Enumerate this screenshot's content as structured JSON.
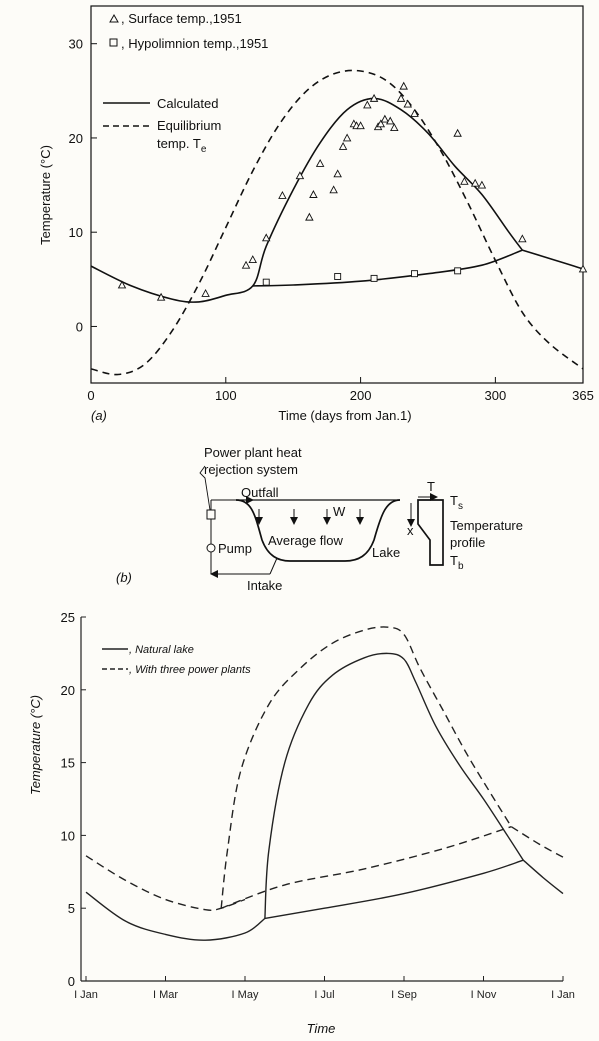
{
  "chart_data": [
    {
      "type": "line",
      "panel_label": "(a)",
      "xlabel": "Time (days from Jan.1)",
      "ylabel": "Temperature (°C)",
      "xlim": [
        0,
        365
      ],
      "ylim": [
        -6,
        34
      ],
      "x_ticks": [
        "0",
        "100",
        "200",
        "300",
        "365"
      ],
      "y_ticks": [
        "0",
        "10",
        "20",
        "30"
      ],
      "legend_markers": [
        {
          "marker": "triangle",
          "label": ", Surface temp.,1951"
        },
        {
          "marker": "square",
          "label": ", Hypolimnion temp.,1951"
        }
      ],
      "legend_lines": [
        {
          "style": "solid",
          "label": "Calculated"
        },
        {
          "style": "dashed",
          "label": "Equilibrium",
          "label2": "temp. T",
          "label2_sub": "e"
        }
      ],
      "series": [
        {
          "name": "Calculated",
          "style": "solid",
          "x": [
            0,
            30,
            60,
            80,
            100,
            120,
            130,
            150,
            170,
            190,
            210,
            230,
            250,
            270,
            290,
            310,
            320
          ],
          "y": [
            6.4,
            4.3,
            2.9,
            2.6,
            3.3,
            4.3,
            8.5,
            14.5,
            19.5,
            23.0,
            24.2,
            23.0,
            20.5,
            17.0,
            14.0,
            10.0,
            8.1
          ]
        },
        {
          "name": "Calculated (hypolimnion)",
          "style": "solid",
          "x": [
            120,
            150,
            200,
            250,
            290,
            320
          ],
          "y": [
            4.3,
            4.4,
            4.8,
            5.6,
            6.5,
            8.1
          ]
        },
        {
          "name": "Calculated (late)",
          "style": "solid",
          "x": [
            320,
            345,
            365
          ],
          "y": [
            8.1,
            7.0,
            6.1
          ]
        },
        {
          "name": "Equilibrium temp. Te",
          "style": "dashed",
          "x": [
            0,
            20,
            40,
            60,
            80,
            100,
            120,
            140,
            160,
            180,
            200,
            220,
            240,
            260,
            280,
            300,
            320,
            340,
            365
          ],
          "y": [
            -4.5,
            -5.1,
            -4.0,
            -0.5,
            4.5,
            10.5,
            16.5,
            21.5,
            25.0,
            26.8,
            27.1,
            26.0,
            23.0,
            18.5,
            13.0,
            7.0,
            1.5,
            -1.8,
            -4.5
          ]
        }
      ],
      "surface_points": {
        "x": [
          23,
          52,
          85,
          115,
          120,
          130,
          142,
          155,
          162,
          165,
          170,
          180,
          183,
          187,
          190,
          195,
          197,
          200,
          205,
          210,
          213,
          215,
          218,
          222,
          225,
          230,
          232,
          235,
          240,
          272,
          277,
          285,
          290,
          320,
          365
        ],
        "y": [
          4.4,
          3.1,
          3.5,
          6.5,
          7.1,
          9.4,
          13.9,
          16.0,
          11.6,
          14.0,
          17.3,
          14.5,
          16.2,
          19.1,
          20.0,
          21.5,
          21.3,
          21.3,
          23.5,
          24.2,
          21.2,
          21.5,
          22.0,
          21.8,
          21.1,
          24.2,
          25.5,
          23.6,
          22.6,
          20.5,
          15.4,
          15.2,
          15.0,
          9.3,
          6.1
        ]
      },
      "hypolimnion_points": {
        "x": [
          130,
          183,
          210,
          240,
          272
        ],
        "y": [
          4.7,
          5.3,
          5.1,
          5.6,
          5.9
        ]
      }
    },
    {
      "type": "line",
      "xlabel": "Time",
      "ylabel": "Temperature (°C)",
      "ylim": [
        0,
        25
      ],
      "x_ticks": [
        "I Jan",
        "I Mar",
        "I May",
        "I Jul",
        "I Sep",
        "I Nov",
        "I Jan"
      ],
      "y_ticks": [
        "0",
        "5",
        "10",
        "15",
        "20",
        "25"
      ],
      "series": [
        {
          "name": ", Natural lake",
          "style": "solid",
          "x": [
            0,
            0.5,
            1.0,
            1.5,
            2.0,
            2.25
          ],
          "y": [
            6.1,
            4.1,
            3.2,
            2.8,
            3.3,
            4.3
          ]
        },
        {
          "name": "Natural lake (epilimnion)",
          "style": "solid",
          "x": [
            2.25,
            2.3,
            2.5,
            2.8,
            3.1,
            3.5,
            3.8,
            4.0,
            4.15,
            4.4,
            4.7,
            5.0,
            5.3,
            5.5
          ],
          "y": [
            4.3,
            9.0,
            15.0,
            19.0,
            21.0,
            22.2,
            22.5,
            22.1,
            20.5,
            17.5,
            14.8,
            12.5,
            10.0,
            8.3
          ]
        },
        {
          "name": "Natural lake (hypolimnion)",
          "style": "solid",
          "x": [
            2.25,
            3.0,
            4.0,
            5.0,
            5.5
          ],
          "y": [
            4.3,
            5.0,
            6.0,
            7.4,
            8.3
          ]
        },
        {
          "name": "Natural lake (winter)",
          "style": "solid",
          "x": [
            5.5,
            5.75,
            6.0
          ],
          "y": [
            8.3,
            7.1,
            6.0
          ]
        },
        {
          "name": ", With three power plants",
          "style": "dashed",
          "x": [
            0,
            0.5,
            1.0,
            1.5,
            1.7,
            2.0
          ],
          "y": [
            8.6,
            6.9,
            5.6,
            4.9,
            5.0,
            5.6
          ]
        },
        {
          "name": "With three power plants (epilimnion)",
          "style": "dashed",
          "x": [
            1.7,
            1.78,
            1.95,
            2.3,
            2.7,
            3.1,
            3.5,
            3.8,
            4.0,
            4.2,
            4.5,
            4.8,
            5.1,
            5.35
          ],
          "y": [
            5.0,
            9.0,
            14.5,
            19.0,
            21.5,
            23.2,
            24.1,
            24.3,
            23.8,
            21.5,
            18.5,
            15.5,
            12.8,
            10.6
          ]
        },
        {
          "name": "With three power plants (hypolimnion)",
          "style": "dashed",
          "x": [
            1.7,
            2.5,
            3.5,
            4.5,
            5.35
          ],
          "y": [
            5.0,
            6.6,
            7.7,
            9.1,
            10.6
          ]
        },
        {
          "name": "With three power plants (winter)",
          "style": "dashed",
          "x": [
            5.35,
            5.7,
            6.0
          ],
          "y": [
            10.6,
            9.4,
            8.5
          ]
        }
      ]
    }
  ],
  "diagram": {
    "panel_label": "(b)",
    "title_line1": "Power plant heat",
    "title_line2": "rejection system",
    "outfall": "Outfall",
    "w_label": "W",
    "average_flow": "Average flow",
    "pump": "Pump",
    "intake": "Intake",
    "lake": "Lake",
    "t_label": "T",
    "x_label": "x",
    "ts_label": "T",
    "ts_sub": "s",
    "profile_line1": "Temperature",
    "profile_line2": "profile",
    "tb_label": "T",
    "tb_sub": "b"
  }
}
